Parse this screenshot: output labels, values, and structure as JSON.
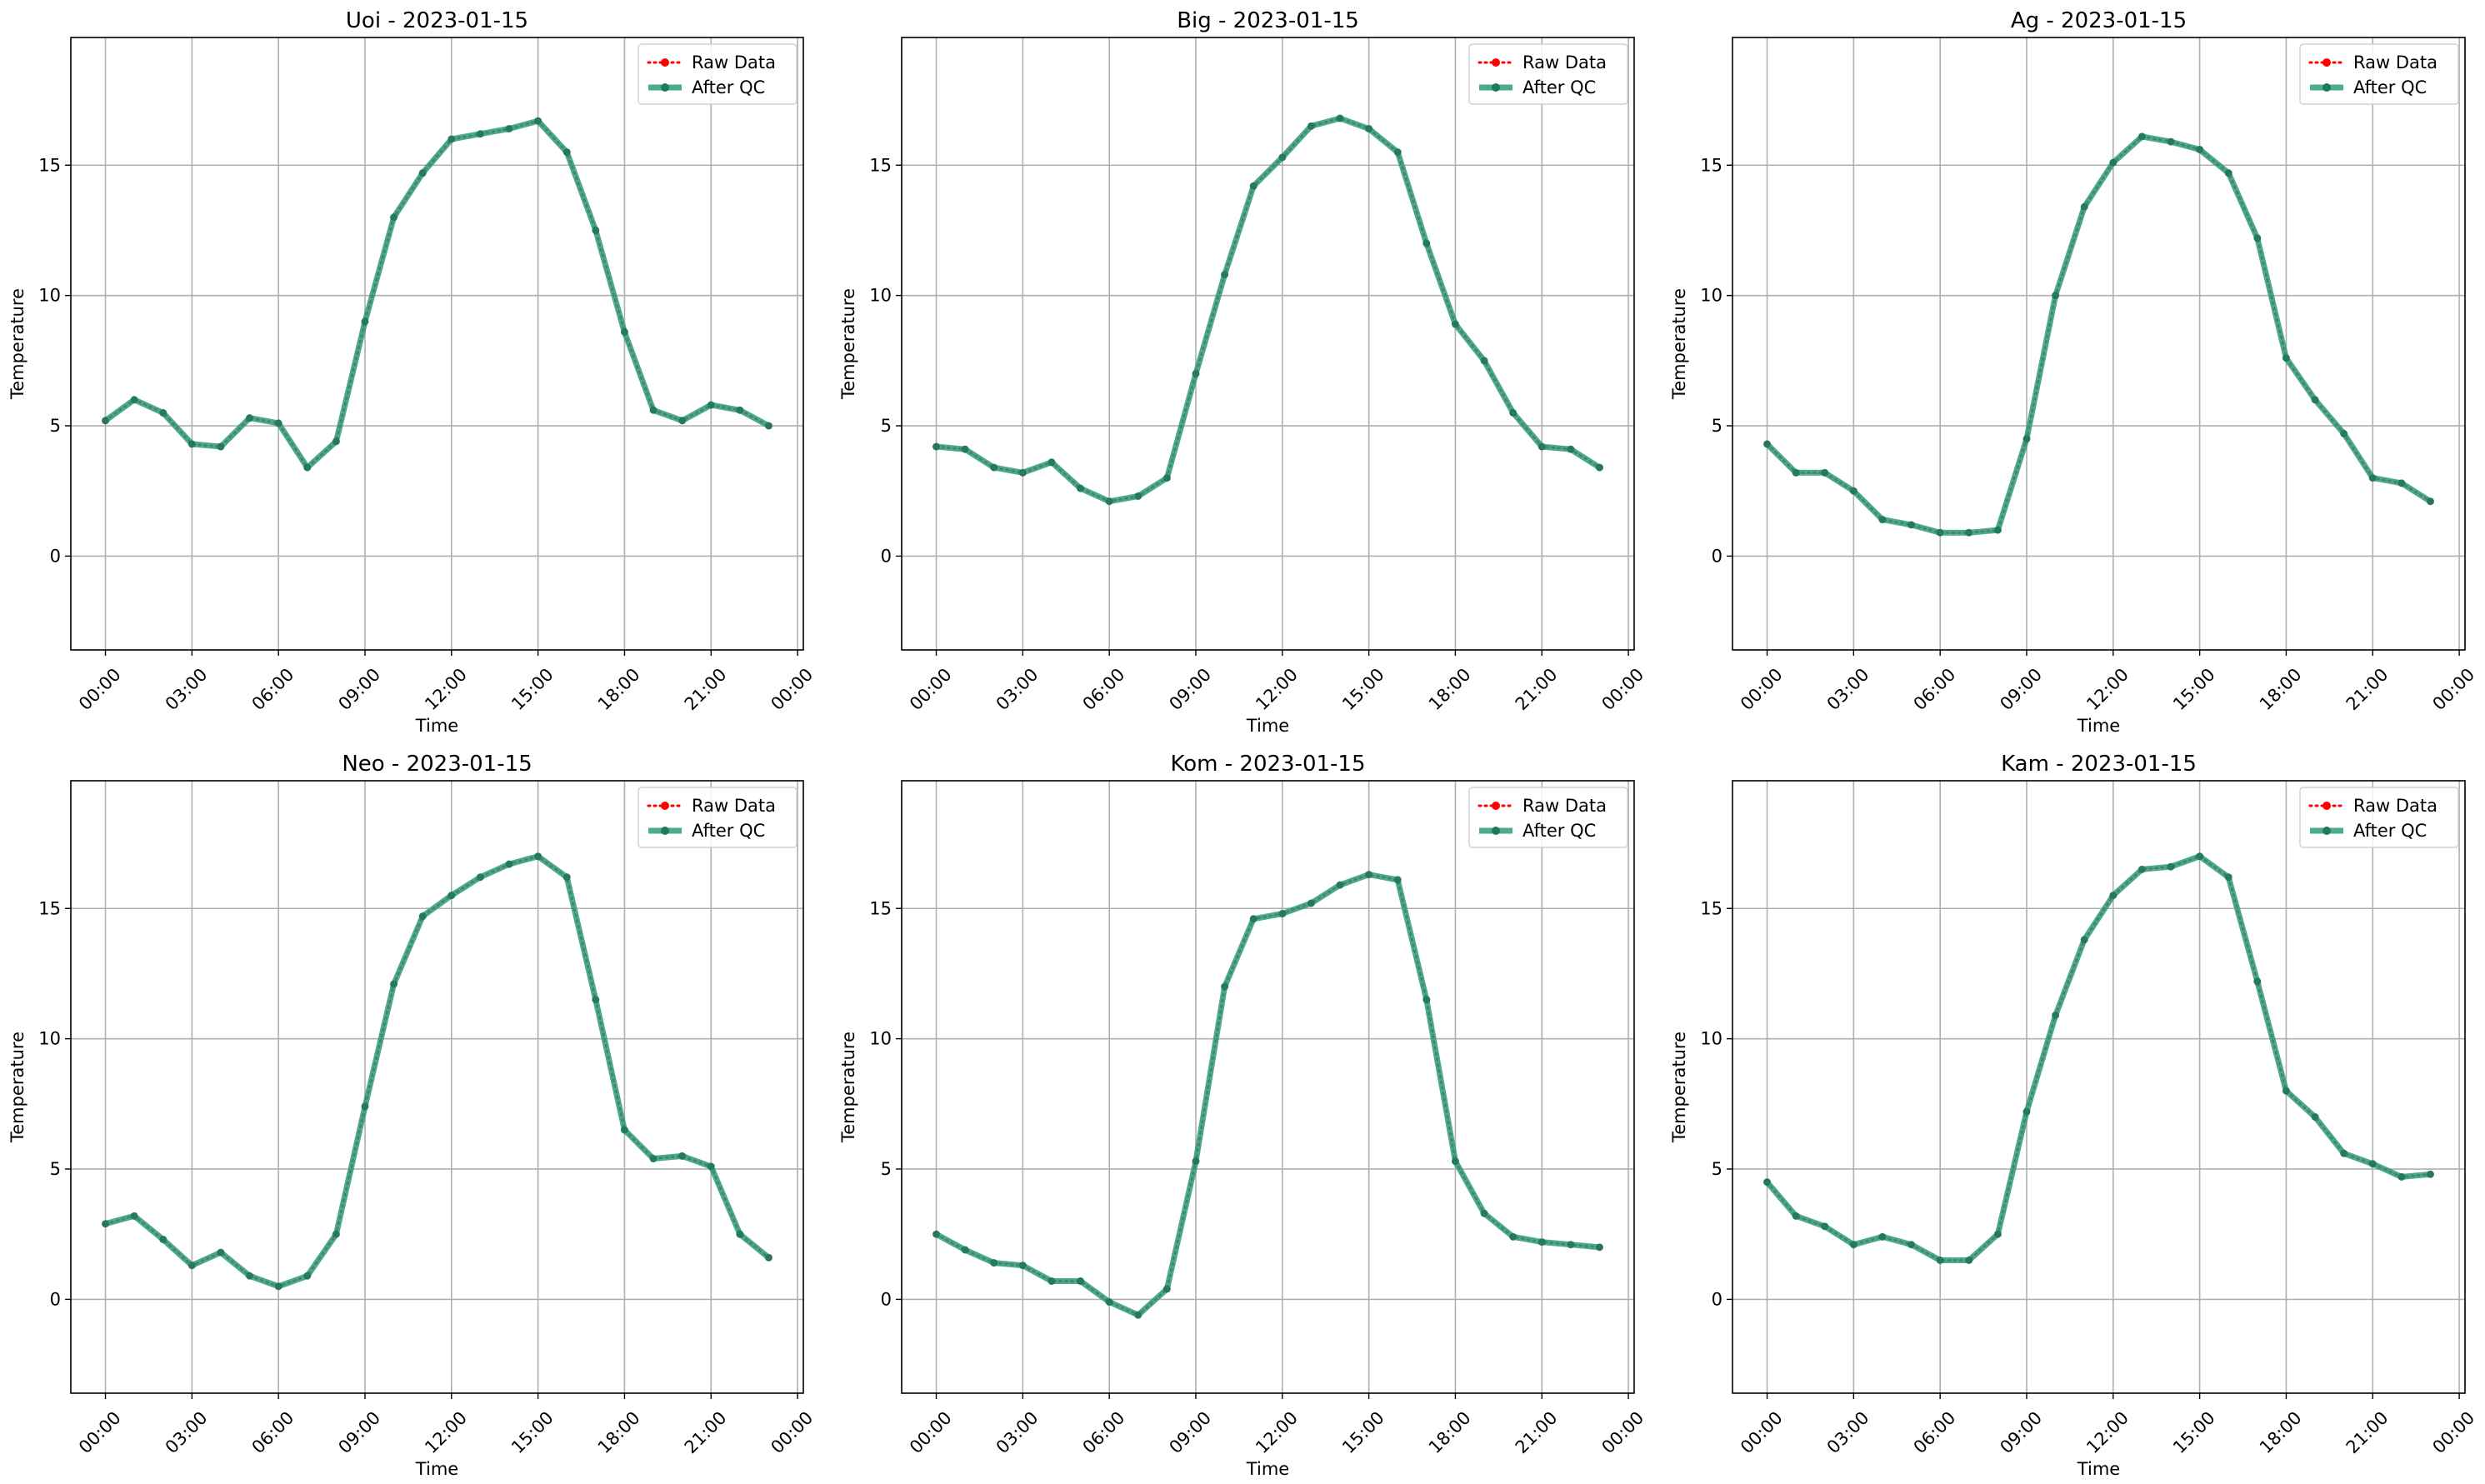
{
  "colors": {
    "raw": "#ff0000",
    "qc": "#2a9d78",
    "qc_marker": "#1f7a5a",
    "grid": "#b0b0b0"
  },
  "chart_data": [
    {
      "type": "line",
      "title": "Uoi - 2023-01-15",
      "xlabel": "Time",
      "ylabel": "Temperature",
      "x_ticks": [
        "00:00",
        "03:00",
        "06:00",
        "09:00",
        "12:00",
        "15:00",
        "18:00",
        "21:00",
        "00:00"
      ],
      "y_ticks": [
        0,
        5,
        10,
        15
      ],
      "ylim": [
        -3.6,
        19.9
      ],
      "xlim_hours": [
        -1.2,
        24.2
      ],
      "grid": true,
      "legend": "top-right",
      "x_hours": [
        0,
        1,
        2,
        3,
        4,
        5,
        6,
        7,
        8,
        9,
        10,
        11,
        12,
        13,
        14,
        15,
        16,
        17,
        18,
        19,
        20,
        21,
        22,
        23
      ],
      "series": [
        {
          "name": "Raw Data",
          "values": [
            5.2,
            6.0,
            5.5,
            4.3,
            4.2,
            5.3,
            5.1,
            3.4,
            4.4,
            9.0,
            13.0,
            14.7,
            16.0,
            16.2,
            16.4,
            16.7,
            15.5,
            12.5,
            8.6,
            5.6,
            5.2,
            5.8,
            5.6,
            5.0
          ]
        },
        {
          "name": "After QC",
          "values": [
            5.2,
            6.0,
            5.5,
            4.3,
            4.2,
            5.3,
            5.1,
            3.4,
            4.4,
            9.0,
            13.0,
            14.7,
            16.0,
            16.2,
            16.4,
            16.7,
            15.5,
            12.5,
            8.6,
            5.6,
            5.2,
            5.8,
            5.6,
            5.0
          ]
        }
      ]
    },
    {
      "type": "line",
      "title": "Big - 2023-01-15",
      "xlabel": "Time",
      "ylabel": "Temperature",
      "x_ticks": [
        "00:00",
        "03:00",
        "06:00",
        "09:00",
        "12:00",
        "15:00",
        "18:00",
        "21:00",
        "00:00"
      ],
      "y_ticks": [
        0,
        5,
        10,
        15
      ],
      "ylim": [
        -3.6,
        19.9
      ],
      "xlim_hours": [
        -1.2,
        24.2
      ],
      "grid": true,
      "legend": "top-right",
      "x_hours": [
        0,
        1,
        2,
        3,
        4,
        5,
        6,
        7,
        8,
        9,
        10,
        11,
        12,
        13,
        14,
        15,
        16,
        17,
        18,
        19,
        20,
        21,
        22,
        23
      ],
      "series": [
        {
          "name": "Raw Data",
          "values": [
            4.2,
            4.1,
            3.4,
            3.2,
            3.6,
            2.6,
            2.1,
            2.3,
            3.0,
            7.0,
            10.8,
            14.2,
            15.3,
            16.5,
            16.8,
            16.4,
            15.5,
            12.0,
            8.9,
            7.5,
            5.5,
            4.2,
            4.1,
            3.4
          ]
        },
        {
          "name": "After QC",
          "values": [
            4.2,
            4.1,
            3.4,
            3.2,
            3.6,
            2.6,
            2.1,
            2.3,
            3.0,
            7.0,
            10.8,
            14.2,
            15.3,
            16.5,
            16.8,
            16.4,
            15.5,
            12.0,
            8.9,
            7.5,
            5.5,
            4.2,
            4.1,
            3.4
          ]
        }
      ]
    },
    {
      "type": "line",
      "title": "Ag - 2023-01-15",
      "xlabel": "Time",
      "ylabel": "Temperature",
      "x_ticks": [
        "00:00",
        "03:00",
        "06:00",
        "09:00",
        "12:00",
        "15:00",
        "18:00",
        "21:00",
        "00:00"
      ],
      "y_ticks": [
        0,
        5,
        10,
        15
      ],
      "ylim": [
        -3.6,
        19.9
      ],
      "xlim_hours": [
        -1.2,
        24.2
      ],
      "grid": true,
      "legend": "top-right",
      "x_hours": [
        0,
        1,
        2,
        3,
        4,
        5,
        6,
        7,
        8,
        9,
        10,
        11,
        12,
        13,
        14,
        15,
        16,
        17,
        18,
        19,
        20,
        21,
        22,
        23
      ],
      "series": [
        {
          "name": "Raw Data",
          "values": [
            4.3,
            3.2,
            3.2,
            2.5,
            1.4,
            1.2,
            0.9,
            0.9,
            1.0,
            4.5,
            10.0,
            13.4,
            15.1,
            16.1,
            15.9,
            15.6,
            14.7,
            12.2,
            7.6,
            6.0,
            4.7,
            3.0,
            2.8,
            2.1
          ]
        },
        {
          "name": "After QC",
          "values": [
            4.3,
            3.2,
            3.2,
            2.5,
            1.4,
            1.2,
            0.9,
            0.9,
            1.0,
            4.5,
            10.0,
            13.4,
            15.1,
            16.1,
            15.9,
            15.6,
            14.7,
            12.2,
            7.6,
            6.0,
            4.7,
            3.0,
            2.8,
            2.1
          ]
        }
      ]
    },
    {
      "type": "line",
      "title": "Neo - 2023-01-15",
      "xlabel": "Time",
      "ylabel": "Temperature",
      "x_ticks": [
        "00:00",
        "03:00",
        "06:00",
        "09:00",
        "12:00",
        "15:00",
        "18:00",
        "21:00",
        "00:00"
      ],
      "y_ticks": [
        0,
        5,
        10,
        15
      ],
      "ylim": [
        -3.6,
        19.9
      ],
      "xlim_hours": [
        -1.2,
        24.2
      ],
      "grid": true,
      "legend": "top-right",
      "x_hours": [
        0,
        1,
        2,
        3,
        4,
        5,
        6,
        7,
        8,
        9,
        10,
        11,
        12,
        13,
        14,
        15,
        16,
        17,
        18,
        19,
        20,
        21,
        22,
        23
      ],
      "series": [
        {
          "name": "Raw Data",
          "values": [
            2.9,
            3.2,
            2.3,
            1.3,
            1.8,
            0.9,
            0.5,
            0.9,
            2.5,
            7.4,
            12.1,
            14.7,
            15.5,
            16.2,
            16.7,
            17.0,
            16.2,
            11.5,
            6.5,
            5.4,
            5.5,
            5.1,
            2.5,
            1.6
          ]
        },
        {
          "name": "After QC",
          "values": [
            2.9,
            3.2,
            2.3,
            1.3,
            1.8,
            0.9,
            0.5,
            0.9,
            2.5,
            7.4,
            12.1,
            14.7,
            15.5,
            16.2,
            16.7,
            17.0,
            16.2,
            11.5,
            6.5,
            5.4,
            5.5,
            5.1,
            2.5,
            1.6
          ]
        }
      ]
    },
    {
      "type": "line",
      "title": "Kom - 2023-01-15",
      "xlabel": "Time",
      "ylabel": "Temperature",
      "x_ticks": [
        "00:00",
        "03:00",
        "06:00",
        "09:00",
        "12:00",
        "15:00",
        "18:00",
        "21:00",
        "00:00"
      ],
      "y_ticks": [
        0,
        5,
        10,
        15
      ],
      "ylim": [
        -3.6,
        19.9
      ],
      "xlim_hours": [
        -1.2,
        24.2
      ],
      "grid": true,
      "legend": "top-right",
      "x_hours": [
        0,
        1,
        2,
        3,
        4,
        5,
        6,
        7,
        8,
        9,
        10,
        11,
        12,
        13,
        14,
        15,
        16,
        17,
        18,
        19,
        20,
        21,
        22,
        23
      ],
      "series": [
        {
          "name": "Raw Data",
          "values": [
            2.5,
            1.9,
            1.4,
            1.3,
            0.7,
            0.7,
            -0.1,
            -0.6,
            0.4,
            5.3,
            12.0,
            14.6,
            14.8,
            15.2,
            15.9,
            16.3,
            16.1,
            11.5,
            5.3,
            3.3,
            2.4,
            2.2,
            2.1,
            2.0
          ]
        },
        {
          "name": "After QC",
          "values": [
            2.5,
            1.9,
            1.4,
            1.3,
            0.7,
            0.7,
            -0.1,
            -0.6,
            0.4,
            5.3,
            12.0,
            14.6,
            14.8,
            15.2,
            15.9,
            16.3,
            16.1,
            11.5,
            5.3,
            3.3,
            2.4,
            2.2,
            2.1,
            2.0
          ]
        }
      ]
    },
    {
      "type": "line",
      "title": "Kam - 2023-01-15",
      "xlabel": "Time",
      "ylabel": "Temperature",
      "x_ticks": [
        "00:00",
        "03:00",
        "06:00",
        "09:00",
        "12:00",
        "15:00",
        "18:00",
        "21:00",
        "00:00"
      ],
      "y_ticks": [
        0,
        5,
        10,
        15
      ],
      "ylim": [
        -3.6,
        19.9
      ],
      "xlim_hours": [
        -1.2,
        24.2
      ],
      "grid": true,
      "legend": "top-right",
      "x_hours": [
        0,
        1,
        2,
        3,
        4,
        5,
        6,
        7,
        8,
        9,
        10,
        11,
        12,
        13,
        14,
        15,
        16,
        17,
        18,
        19,
        20,
        21,
        22,
        23
      ],
      "series": [
        {
          "name": "Raw Data",
          "values": [
            4.5,
            3.2,
            2.8,
            2.1,
            2.4,
            2.1,
            1.5,
            1.5,
            2.5,
            7.2,
            10.9,
            13.8,
            15.5,
            16.5,
            16.6,
            17.0,
            16.2,
            12.2,
            8.0,
            7.0,
            5.6,
            5.2,
            4.7,
            4.8
          ]
        },
        {
          "name": "After QC",
          "values": [
            4.5,
            3.2,
            2.8,
            2.1,
            2.4,
            2.1,
            1.5,
            1.5,
            2.5,
            7.2,
            10.9,
            13.8,
            15.5,
            16.5,
            16.6,
            17.0,
            16.2,
            12.2,
            8.0,
            7.0,
            5.6,
            5.2,
            4.7,
            4.8
          ]
        }
      ]
    }
  ]
}
